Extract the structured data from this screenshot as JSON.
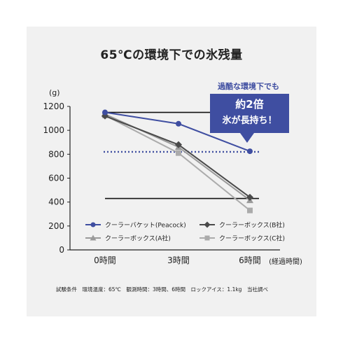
{
  "chart_data": {
    "type": "line",
    "title": "65℃の環境下での氷残量",
    "ylabel": "(g)",
    "xlabel": "(経過時間)",
    "categories": [
      "0時間",
      "3時間",
      "6時間"
    ],
    "ylim": [
      0,
      1200
    ],
    "yticks": [
      0,
      200,
      400,
      600,
      800,
      1000,
      1200
    ],
    "reference_lines": [
      1150,
      430
    ],
    "highlight_line": 820,
    "series": [
      {
        "name": "クーラーバケット(Peacock)",
        "color": "#3f4ea1",
        "marker": "circle",
        "values": [
          1150,
          1055,
          825
        ]
      },
      {
        "name": "クーラーボックス(A社)",
        "color": "#9a9a9a",
        "marker": "triangle",
        "values": [
          1135,
          860,
          415
        ]
      },
      {
        "name": "クーラーボックス(B社)",
        "color": "#4a4a4a",
        "marker": "diamond",
        "values": [
          1120,
          880,
          440
        ]
      },
      {
        "name": "クーラーボックス(C社)",
        "color": "#ababab",
        "marker": "square",
        "values": [
          1125,
          810,
          330
        ]
      }
    ],
    "grid": false,
    "legend": "bottom-inside"
  },
  "callout": {
    "head": "過酷な環境下でも",
    "line1": "約2倍",
    "line2": "氷が長持ち！"
  },
  "footnote": "試験条件　環境温度：65℃　観測時間：3時間、6時間　ロックアイス：1.1kg　当社調べ"
}
